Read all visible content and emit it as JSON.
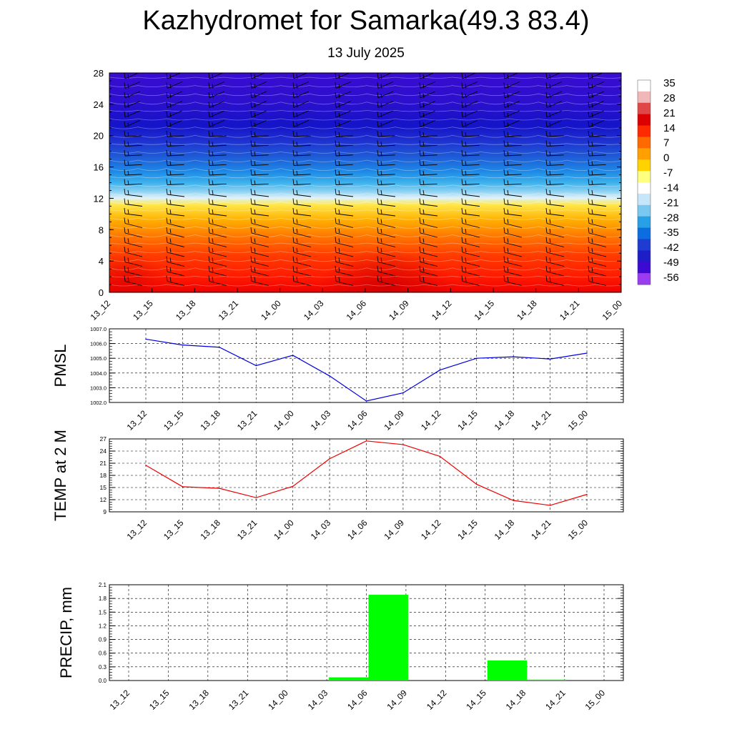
{
  "title": "Kazhydromet for Samarka(49.3 83.4)",
  "subtitle": "13 July 2025",
  "chart_data": [
    {
      "type": "heatmap",
      "panel": "vertical-temperature-wind-cross-section",
      "x_categories": [
        "13_12",
        "13_15",
        "13_18",
        "13_21",
        "14_00",
        "14_03",
        "14_06",
        "14_09",
        "14_12",
        "14_15",
        "14_18",
        "14_21",
        "15_00"
      ],
      "y_ticks": [
        0,
        4,
        8,
        12,
        16,
        20,
        24,
        28
      ],
      "ylim": [
        0,
        28
      ],
      "colorbar_labels": [
        "35",
        "28",
        "21",
        "14",
        "7",
        "0",
        "-7",
        "-14",
        "-21",
        "-28",
        "-35",
        "-42",
        "-49",
        "-56"
      ],
      "colorbar_colors": [
        "#ffffff",
        "#f0b8b8",
        "#e04848",
        "#dd0000",
        "#ff2a00",
        "#ff6a00",
        "#ffa000",
        "#ffd200",
        "#ffff80",
        "#ffffff",
        "#c8e6fa",
        "#78c8f0",
        "#28a0e6",
        "#0a6ee0",
        "#1e3cd2",
        "#1e1ec8",
        "#3c0ad2",
        "#9a3cf0"
      ],
      "wind_barbs": true
    },
    {
      "type": "line",
      "ylabel": "PMSL",
      "categories": [
        "13_12",
        "13_15",
        "13_18",
        "13_21",
        "14_00",
        "14_03",
        "14_06",
        "14_09",
        "14_12",
        "14_15",
        "14_18",
        "14_21",
        "15_00"
      ],
      "ylim": [
        1002.0,
        1007.0
      ],
      "y_ticks": [
        "1002.0",
        "1003.0",
        "1004.0",
        "1005.0",
        "1006.0",
        "1007.0"
      ],
      "series": [
        {
          "values": [
            1006.3,
            1005.9,
            1005.75,
            1004.5,
            1005.2,
            1003.8,
            1002.1,
            1002.65,
            1004.2,
            1005.0,
            1005.1,
            1004.95,
            1005.35
          ]
        }
      ],
      "color": "#0000dd",
      "grid": true
    },
    {
      "type": "line",
      "ylabel": "TEMP at 2 M",
      "categories": [
        "13_12",
        "13_15",
        "13_18",
        "13_21",
        "14_00",
        "14_03",
        "14_06",
        "14_09",
        "14_12",
        "14_15",
        "14_18",
        "14_21",
        "15_00"
      ],
      "ylim": [
        9,
        27
      ],
      "y_ticks": [
        "9",
        "12",
        "15",
        "18",
        "21",
        "24",
        "27"
      ],
      "series": [
        {
          "values": [
            20.5,
            15.2,
            14.8,
            12.5,
            15.3,
            22.1,
            26.5,
            25.6,
            22.7,
            15.8,
            11.8,
            10.6,
            13.3
          ]
        }
      ],
      "color": "#ee0000",
      "grid": true
    },
    {
      "type": "bar",
      "ylabel": "PRECIP, mm",
      "categories": [
        "13_12",
        "13_15",
        "13_18",
        "13_21",
        "14_00",
        "14_03",
        "14_06",
        "14_09",
        "14_12",
        "14_15",
        "14_18",
        "14_21",
        "15_00"
      ],
      "ylim": [
        0,
        2.1
      ],
      "y_ticks": [
        "0.0",
        "0.3",
        "0.6",
        "0.9",
        "1.2",
        "1.5",
        "1.8",
        "2.1"
      ],
      "bars": [
        {
          "from": "14_03",
          "to": "14_06",
          "value": 0.07
        },
        {
          "from": "14_06",
          "to": "14_09",
          "value": 1.88
        },
        {
          "from": "14_15",
          "to": "14_18",
          "value": 0.44
        },
        {
          "from": "14_18",
          "to": "14_21",
          "value": 0.02
        }
      ],
      "color": "#00ff00",
      "grid": true
    }
  ]
}
